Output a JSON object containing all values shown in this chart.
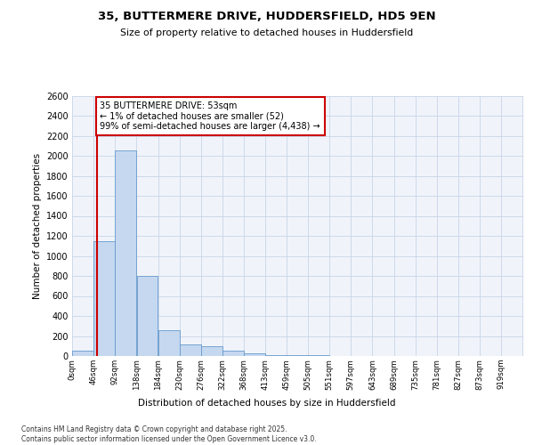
{
  "title1": "35, BUTTERMERE DRIVE, HUDDERSFIELD, HD5 9EN",
  "title2": "Size of property relative to detached houses in Huddersfield",
  "xlabel": "Distribution of detached houses by size in Huddersfield",
  "ylabel": "Number of detached properties",
  "footnote": "Contains HM Land Registry data © Crown copyright and database right 2025.\nContains public sector information licensed under the Open Government Licence v3.0.",
  "bin_labels": [
    "0sqm",
    "46sqm",
    "92sqm",
    "138sqm",
    "184sqm",
    "230sqm",
    "276sqm",
    "322sqm",
    "368sqm",
    "413sqm",
    "459sqm",
    "505sqm",
    "551sqm",
    "597sqm",
    "643sqm",
    "689sqm",
    "735sqm",
    "781sqm",
    "827sqm",
    "873sqm",
    "919sqm"
  ],
  "bin_left_edges": [
    0,
    46,
    92,
    138,
    184,
    230,
    276,
    322,
    368,
    413,
    459,
    505,
    551,
    597,
    643,
    689,
    735,
    781,
    827,
    873,
    919
  ],
  "bar_values": [
    52,
    1150,
    2050,
    800,
    260,
    120,
    100,
    50,
    30,
    10,
    10,
    5,
    0,
    0,
    0,
    0,
    0,
    0,
    0,
    0,
    0
  ],
  "bar_color": "#c5d8f0",
  "bar_edge_color": "#6699cc",
  "property_size": 53,
  "annotation_text": "35 BUTTERMERE DRIVE: 53sqm\n← 1% of detached houses are smaller (52)\n99% of semi-detached houses are larger (4,438) →",
  "vline_color": "#cc0000",
  "annotation_box_edgecolor": "#cc0000",
  "annotation_box_facecolor": "#ffffff",
  "ylim": [
    0,
    2600
  ],
  "yticks": [
    0,
    200,
    400,
    600,
    800,
    1000,
    1200,
    1400,
    1600,
    1800,
    2000,
    2200,
    2400,
    2600
  ],
  "bg_color": "#f0f4fa",
  "grid_color": "#c8d4e8"
}
